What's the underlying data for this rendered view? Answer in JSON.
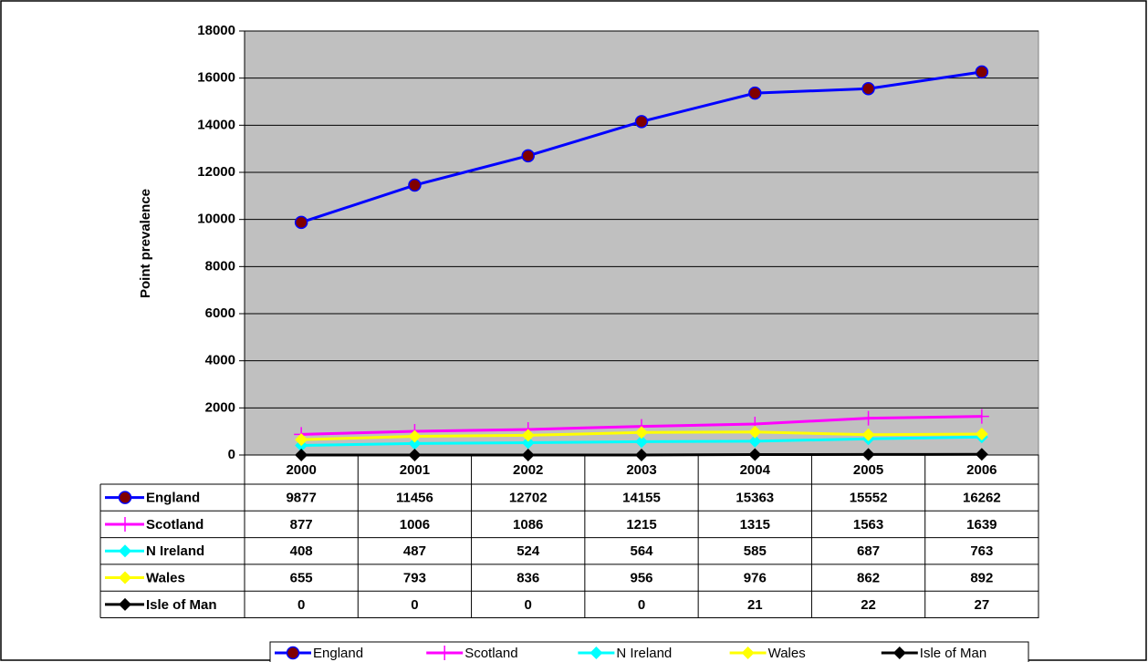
{
  "chart_data": {
    "type": "line",
    "y_label": "Point prevalence",
    "categories": [
      "2000",
      "2001",
      "2002",
      "2003",
      "2004",
      "2005",
      "2006"
    ],
    "series": [
      {
        "name": "England",
        "color": "#0000ff",
        "marker": "circle",
        "marker_color": "#800000",
        "values": [
          9877,
          11456,
          12702,
          14155,
          15363,
          15552,
          16262
        ]
      },
      {
        "name": "Scotland",
        "color": "#ff00ff",
        "marker": "plus",
        "marker_color": "#ff00ff",
        "values": [
          877,
          1006,
          1086,
          1215,
          1315,
          1563,
          1639
        ]
      },
      {
        "name": "N Ireland",
        "color": "#00ffff",
        "marker": "diamond",
        "marker_color": "#00ffff",
        "values": [
          408,
          487,
          524,
          564,
          585,
          687,
          763
        ]
      },
      {
        "name": "Wales",
        "color": "#ffff00",
        "marker": "diamond",
        "marker_color": "#ffff00",
        "values": [
          655,
          793,
          836,
          956,
          976,
          862,
          892
        ]
      },
      {
        "name": "Isle of Man",
        "color": "#000000",
        "marker": "diamond",
        "marker_color": "#000000",
        "values": [
          0,
          0,
          0,
          0,
          21,
          22,
          27
        ]
      }
    ],
    "ylim": [
      0,
      18000
    ],
    "yticks": [
      0,
      2000,
      4000,
      6000,
      8000,
      10000,
      12000,
      14000,
      16000,
      18000
    ],
    "grid": true,
    "plot_background": "#c0c0c0",
    "data_table": true
  }
}
